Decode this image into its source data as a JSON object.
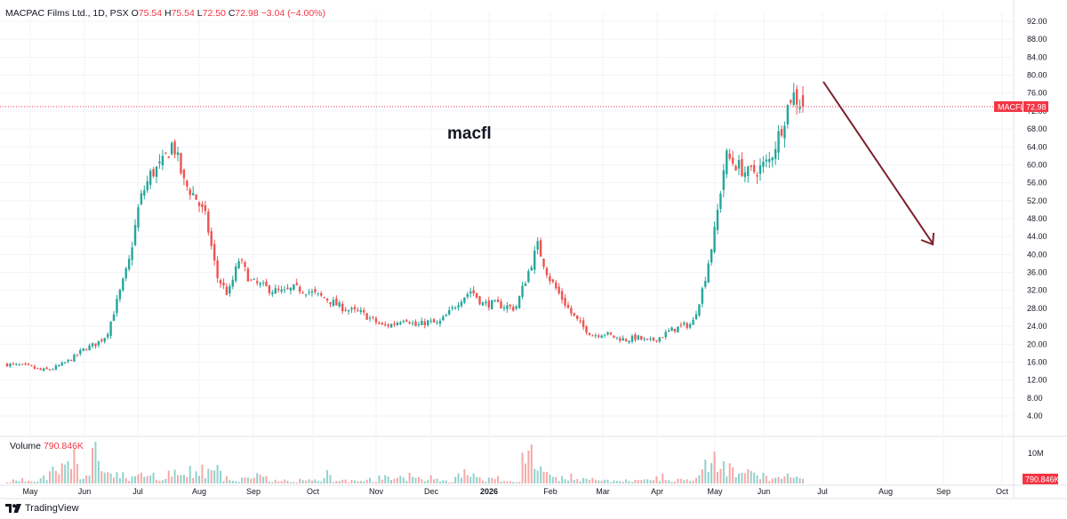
{
  "header": {
    "symbol_line": "MACPAC Films Ltd., 1D, PSX",
    "open_label": "O",
    "open_value": "75.54",
    "high_label": "H",
    "high_value": "75.54",
    "low_label": "L",
    "low_value": "72.50",
    "close_label": "C",
    "close_value": "72.98",
    "change": "−3.04 (−4.00%)"
  },
  "volume_pane": {
    "label": "Volume",
    "value": "790.846K",
    "tick": "10M",
    "last_badge": "790.846K"
  },
  "annotation": "macfl",
  "price_badge": {
    "symbol": "MACFL",
    "value": "72.98"
  },
  "brand": "TradingView",
  "colors": {
    "up": "#26a69a",
    "down": "#ef5350",
    "arrow": "#7b1f2b",
    "last_price": "#f23645"
  },
  "chart_data": {
    "type": "candlestick",
    "price_axis": {
      "range": [
        4,
        94
      ],
      "ticks": [
        "92.00",
        "88.00",
        "84.00",
        "80.00",
        "76.00",
        "72.00",
        "68.00",
        "64.00",
        "60.00",
        "56.00",
        "52.00",
        "48.00",
        "44.00",
        "40.00",
        "36.00",
        "32.00",
        "28.00",
        "24.00",
        "20.00",
        "16.00",
        "12.00",
        "8.00",
        "4.00"
      ]
    },
    "time_axis": {
      "labels": [
        "May",
        "Jun",
        "Jul",
        "Aug",
        "Sep",
        "Oct",
        "Nov",
        "Dec",
        "2026",
        "Feb",
        "Mar",
        "Apr",
        "May",
        "Jun",
        "Jul",
        "Aug",
        "Sep",
        "Oct"
      ]
    },
    "last_price": 72.98,
    "close_path": [
      15.5,
      15.3,
      15.0,
      14.2,
      14.4,
      15.5,
      17.0,
      19.0,
      20.0,
      22.0,
      30.0,
      38.0,
      52.0,
      58.0,
      60.0,
      65.0,
      56.0,
      53.0,
      48.0,
      35.0,
      31.0,
      39.0,
      34.0,
      33.0,
      32.0,
      31.5,
      32.5,
      32.0,
      31.0,
      30.0,
      28.5,
      27.5,
      27.0,
      25.5,
      24.0,
      24.5,
      26.0,
      24.0,
      25.0,
      24.5,
      27.0,
      30.0,
      32.0,
      29.0,
      29.0,
      28.5,
      28.0,
      35.0,
      42.0,
      35.0,
      31.0,
      27.0,
      24.0,
      22.0,
      22.5,
      21.5,
      21.0,
      21.5,
      20.5,
      21.5,
      23.0,
      24.0,
      24.5,
      33.0,
      45.0,
      62.0,
      60.0,
      58.0,
      59.0,
      61.0,
      68.0,
      76.0,
      72.98
    ],
    "volume_profile": [
      0.1,
      0.15,
      0.1,
      0.2,
      0.3,
      0.5,
      0.55,
      0.35,
      0.8,
      0.4,
      0.3,
      0.25,
      0.35,
      0.3,
      0.2,
      0.35,
      0.25,
      0.3,
      0.4,
      0.6,
      0.2,
      0.1,
      0.15,
      0.25,
      0.1,
      0.1,
      0.1,
      0.1,
      0.1,
      0.4,
      0.1,
      0.1,
      0.1,
      0.1,
      0.2,
      0.15,
      0.2,
      0.3,
      0.15,
      0.15,
      0.1,
      0.45,
      0.2,
      0.15,
      0.2,
      0.1,
      0.1,
      0.9,
      0.5,
      0.3,
      0.2,
      0.15,
      0.15,
      0.2,
      0.1,
      0.1,
      0.1,
      0.1,
      0.15,
      0.15,
      0.1,
      0.15,
      0.15,
      0.5,
      1.0,
      0.6,
      0.5,
      0.4,
      0.3,
      0.2,
      0.2,
      0.3,
      0.15
    ]
  }
}
